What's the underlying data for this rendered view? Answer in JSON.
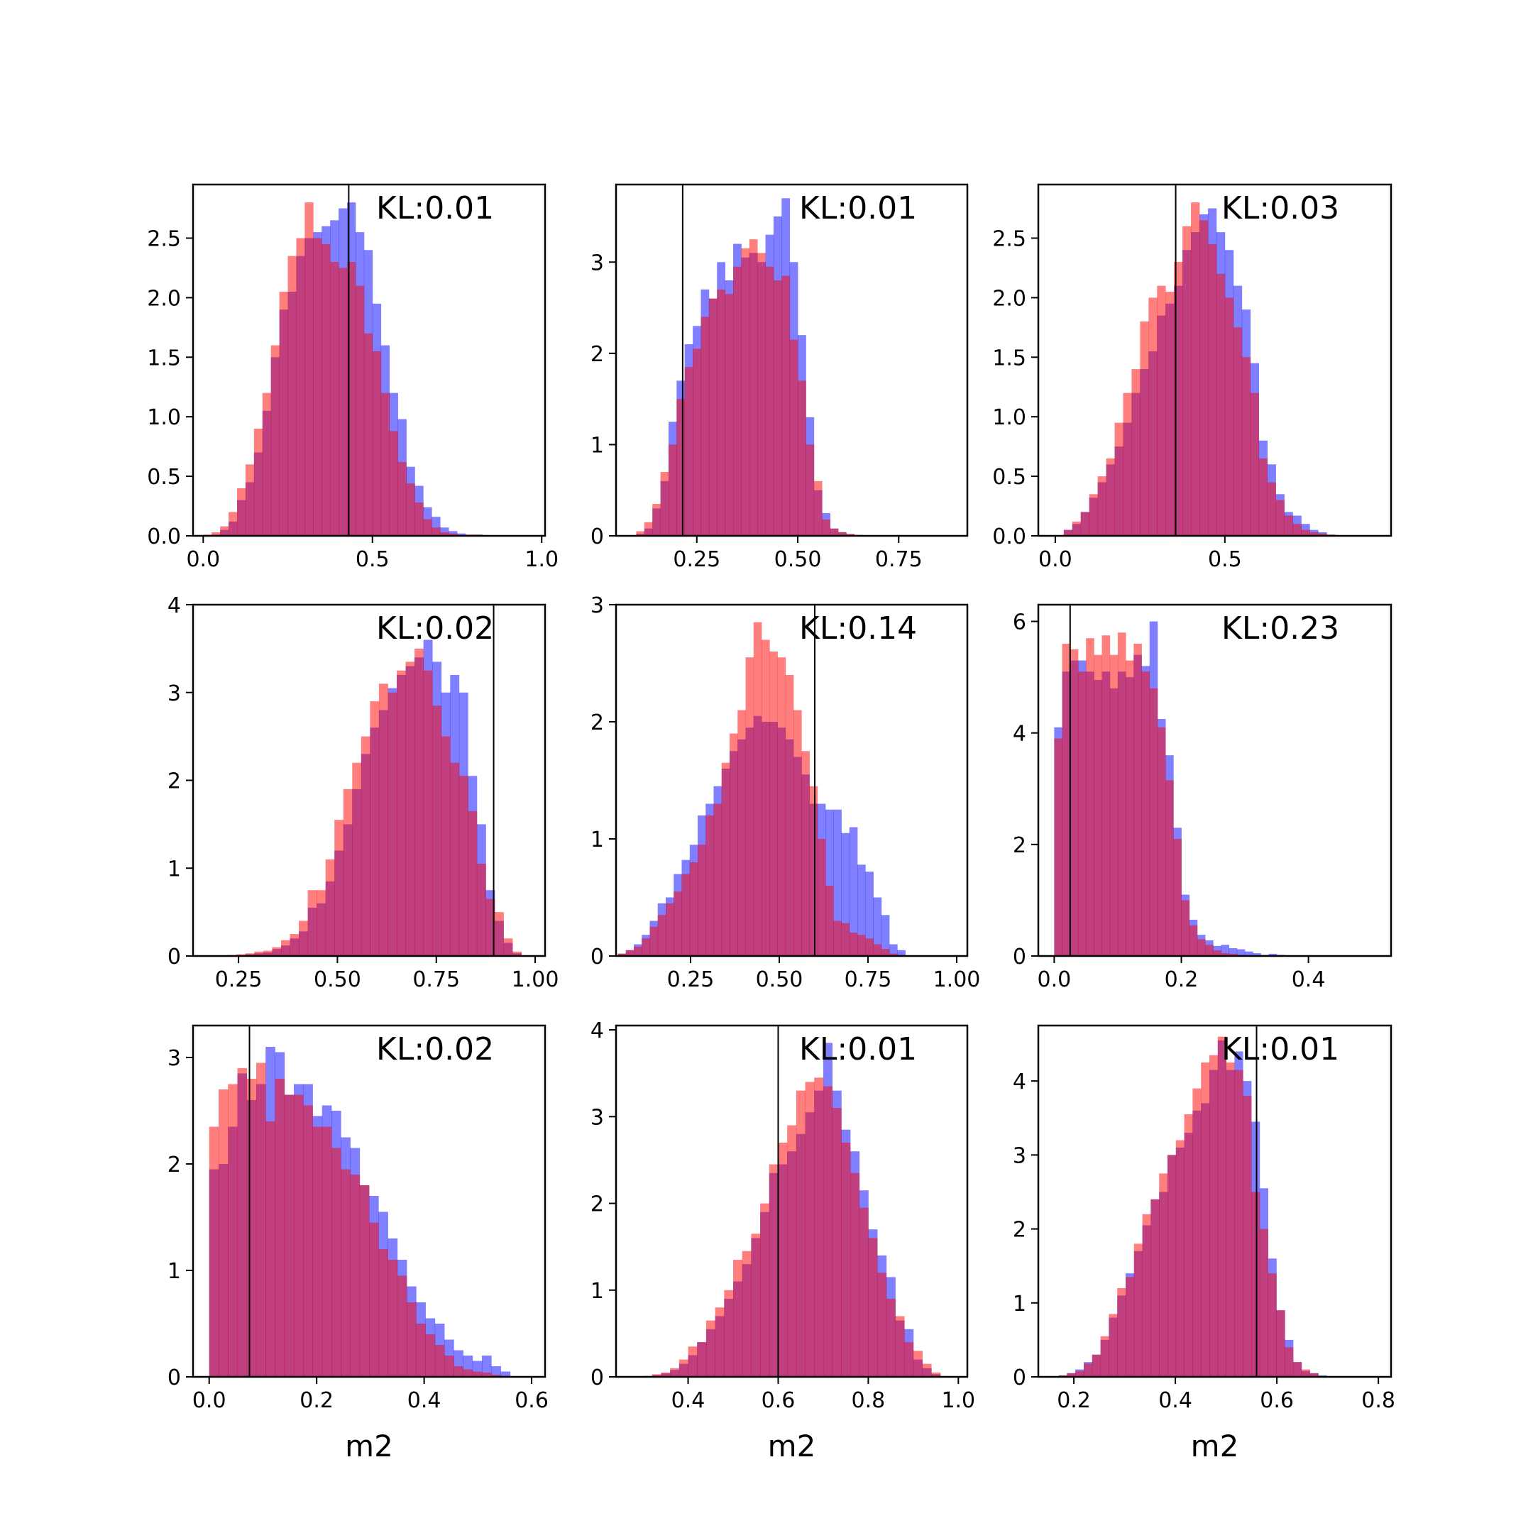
{
  "figure": {
    "colors": {
      "blue": "#0000ff",
      "red": "#ff0000",
      "vline": "#000000",
      "frame": "#000000"
    },
    "bar_opacity": 0.5
  },
  "chart_data": [
    {
      "type": "histogram",
      "annotation": "KL:0.01",
      "xlabel": "",
      "xlim": [
        -0.03,
        1.01
      ],
      "ylim": [
        0,
        2.95
      ],
      "vline": 0.43,
      "xticks": [
        0.0,
        0.5,
        1.0
      ],
      "xtick_labels": [
        "0.0",
        "0.5",
        "1.0"
      ],
      "yticks": [
        0,
        0.5,
        1.0,
        1.5,
        2.0,
        2.5
      ],
      "ytick_labels": [
        "0.0",
        "0.5",
        "1.0",
        "1.5",
        "2.0",
        "2.5"
      ],
      "bins": {
        "start": 0.0,
        "width": 0.025
      },
      "series": [
        {
          "color": "blue",
          "values": [
            0,
            0.01,
            0.05,
            0.12,
            0.3,
            0.45,
            0.7,
            1.05,
            1.5,
            1.9,
            2.05,
            2.35,
            2.5,
            2.55,
            2.6,
            2.65,
            2.75,
            2.8,
            2.55,
            2.4,
            1.95,
            1.6,
            1.2,
            0.98,
            0.58,
            0.42,
            0.24,
            0.16,
            0.07,
            0.04,
            0.02,
            0.01,
            0.01,
            0.0
          ]
        },
        {
          "color": "red",
          "values": [
            0.01,
            0.03,
            0.08,
            0.2,
            0.4,
            0.6,
            0.9,
            1.2,
            1.6,
            2.05,
            2.35,
            2.5,
            2.8,
            2.5,
            2.45,
            2.3,
            2.25,
            2.3,
            2.1,
            1.7,
            1.55,
            1.2,
            0.88,
            0.62,
            0.44,
            0.28,
            0.14,
            0.07,
            0.03,
            0.02,
            0.01,
            0.01,
            0.01,
            0.0
          ]
        }
      ]
    },
    {
      "type": "histogram",
      "annotation": "KL:0.01",
      "xlabel": "",
      "xlim": [
        0.05,
        0.92
      ],
      "ylim": [
        0,
        3.85
      ],
      "vline": 0.215,
      "xticks": [
        0.25,
        0.5,
        0.75
      ],
      "xtick_labels": [
        "0.25",
        "0.50",
        "0.75"
      ],
      "yticks": [
        0,
        1,
        2,
        3
      ],
      "ytick_labels": [
        "0",
        "1",
        "2",
        "3"
      ],
      "bins": {
        "start": 0.1,
        "width": 0.02
      },
      "series": [
        {
          "color": "blue",
          "values": [
            0.02,
            0.08,
            0.3,
            0.6,
            1.25,
            1.7,
            2.1,
            2.3,
            2.7,
            2.6,
            3.0,
            2.8,
            3.2,
            3.05,
            3.1,
            3.0,
            3.3,
            3.5,
            3.7,
            3.0,
            2.2,
            1.3,
            0.5,
            0.25,
            0.08,
            0.04,
            0.02,
            0.01
          ]
        },
        {
          "color": "red",
          "values": [
            0.05,
            0.15,
            0.35,
            0.7,
            1.0,
            1.5,
            1.85,
            2.05,
            2.4,
            2.6,
            2.7,
            2.65,
            2.95,
            3.15,
            3.25,
            3.1,
            2.95,
            2.8,
            2.85,
            2.15,
            1.7,
            1.0,
            0.6,
            0.18,
            0.08,
            0.04,
            0.02,
            0.01
          ]
        }
      ]
    },
    {
      "type": "histogram",
      "annotation": "KL:0.03",
      "xlabel": "",
      "xlim": [
        -0.05,
        0.99
      ],
      "ylim": [
        0,
        2.95
      ],
      "vline": 0.355,
      "xticks": [
        0.0,
        0.5
      ],
      "xtick_labels": [
        "0.0",
        "0.5"
      ],
      "yticks": [
        0,
        0.5,
        1.0,
        1.5,
        2.0,
        2.5
      ],
      "ytick_labels": [
        "0.0",
        "0.5",
        "1.0",
        "1.5",
        "2.0",
        "2.5"
      ],
      "bins": {
        "start": 0.025,
        "width": 0.025
      },
      "series": [
        {
          "color": "blue",
          "values": [
            0.05,
            0.1,
            0.2,
            0.32,
            0.45,
            0.6,
            0.75,
            0.95,
            1.2,
            1.4,
            1.55,
            1.85,
            1.95,
            2.1,
            2.4,
            2.55,
            2.7,
            2.75,
            2.55,
            2.4,
            2.1,
            1.9,
            1.45,
            0.8,
            0.6,
            0.35,
            0.2,
            0.17,
            0.1,
            0.05,
            0.03,
            0.01
          ]
        },
        {
          "color": "red",
          "values": [
            0.05,
            0.12,
            0.2,
            0.35,
            0.5,
            0.65,
            0.95,
            1.2,
            1.4,
            1.8,
            2.0,
            2.1,
            2.05,
            2.3,
            2.6,
            2.8,
            2.65,
            2.45,
            2.2,
            2.0,
            1.75,
            1.5,
            1.2,
            0.65,
            0.45,
            0.3,
            0.17,
            0.1,
            0.05,
            0.03,
            0.02,
            0.01
          ]
        }
      ]
    },
    {
      "type": "histogram",
      "annotation": "KL:0.02",
      "xlabel": "",
      "xlim": [
        0.135,
        1.025
      ],
      "ylim": [
        0,
        4.0
      ],
      "vline": 0.895,
      "xticks": [
        0.25,
        0.5,
        0.75,
        1.0
      ],
      "xtick_labels": [
        "0.25",
        "0.50",
        "0.75",
        "1.00"
      ],
      "yticks": [
        0,
        1,
        2,
        3,
        4
      ],
      "ytick_labels": [
        "0",
        "1",
        "2",
        "3",
        "4"
      ],
      "bins": {
        "start": 0.2,
        "width": 0.0225
      },
      "series": [
        {
          "color": "blue",
          "values": [
            0.0,
            0.01,
            0.01,
            0.02,
            0.03,
            0.04,
            0.08,
            0.12,
            0.2,
            0.28,
            0.55,
            0.6,
            0.85,
            1.2,
            1.5,
            1.9,
            2.3,
            2.6,
            2.8,
            3.05,
            3.2,
            3.3,
            3.4,
            3.6,
            3.35,
            3.0,
            3.2,
            3.0,
            2.05,
            1.5,
            0.75,
            0.4,
            0.15,
            0.03
          ]
        },
        {
          "color": "red",
          "values": [
            0.0,
            0.01,
            0.02,
            0.03,
            0.05,
            0.06,
            0.1,
            0.18,
            0.25,
            0.4,
            0.75,
            0.75,
            1.1,
            1.55,
            1.9,
            2.2,
            2.5,
            2.9,
            3.1,
            3.0,
            3.25,
            3.35,
            3.5,
            3.25,
            2.85,
            2.5,
            2.2,
            2.05,
            1.65,
            1.05,
            0.65,
            0.5,
            0.2,
            0.05
          ]
        }
      ]
    },
    {
      "type": "histogram",
      "annotation": "KL:0.14",
      "xlabel": "",
      "xlim": [
        0.04,
        1.03
      ],
      "ylim": [
        0,
        3.0
      ],
      "vline": 0.6,
      "xticks": [
        0.25,
        0.5,
        0.75,
        1.0
      ],
      "xtick_labels": [
        "0.25",
        "0.50",
        "0.75",
        "1.00"
      ],
      "yticks": [
        0,
        1,
        2,
        3
      ],
      "ytick_labels": [
        "0",
        "1",
        "2",
        "3"
      ],
      "bins": {
        "start": 0.045,
        "width": 0.0225
      },
      "series": [
        {
          "color": "blue",
          "values": [
            0.02,
            0.05,
            0.1,
            0.18,
            0.3,
            0.45,
            0.5,
            0.7,
            0.82,
            0.95,
            1.2,
            1.3,
            1.45,
            1.6,
            1.75,
            1.85,
            1.95,
            2.05,
            2.0,
            2.0,
            1.95,
            1.85,
            1.7,
            1.55,
            1.3,
            1.3,
            1.25,
            1.25,
            1.05,
            1.1,
            0.78,
            0.72,
            0.5,
            0.35,
            0.1,
            0.05
          ]
        },
        {
          "color": "red",
          "values": [
            0.02,
            0.05,
            0.08,
            0.15,
            0.25,
            0.35,
            0.45,
            0.55,
            0.7,
            0.8,
            0.95,
            1.2,
            1.3,
            1.65,
            1.9,
            2.1,
            2.55,
            2.85,
            2.7,
            2.6,
            2.55,
            2.4,
            2.1,
            1.75,
            1.45,
            1.0,
            0.6,
            0.3,
            0.28,
            0.2,
            0.18,
            0.15,
            0.1,
            0.06,
            0.02,
            0.01
          ]
        }
      ]
    },
    {
      "type": "histogram",
      "annotation": "KL:0.23",
      "xlabel": "",
      "xlim": [
        -0.025,
        0.53
      ],
      "ylim": [
        0,
        6.3
      ],
      "vline": 0.025,
      "xticks": [
        0.0,
        0.2,
        0.4
      ],
      "xtick_labels": [
        "0.0",
        "0.2",
        "0.4"
      ],
      "yticks": [
        0,
        2,
        4,
        6
      ],
      "ytick_labels": [
        "0",
        "2",
        "4",
        "6"
      ],
      "bins": {
        "start": 0.0,
        "width": 0.0125
      },
      "series": [
        {
          "color": "blue",
          "values": [
            4.1,
            5.1,
            5.3,
            5.3,
            5.1,
            4.95,
            5.1,
            4.8,
            5.1,
            5.0,
            5.4,
            5.2,
            6.0,
            4.25,
            3.6,
            2.3,
            1.1,
            0.65,
            0.38,
            0.28,
            0.18,
            0.2,
            0.14,
            0.12,
            0.08,
            0.05,
            0.02,
            0.04,
            0.02,
            0.01,
            0.01,
            0.0
          ]
        },
        {
          "color": "red",
          "values": [
            3.9,
            5.6,
            5.5,
            5.1,
            5.7,
            5.4,
            5.75,
            5.4,
            5.8,
            5.3,
            5.6,
            5.1,
            4.8,
            4.1,
            3.15,
            2.1,
            1.0,
            0.55,
            0.3,
            0.2,
            0.1,
            0.05,
            0.04,
            0.02,
            0.01,
            0.01,
            0.0,
            0.0,
            0.0,
            0.0,
            0.0,
            0.0
          ]
        }
      ]
    },
    {
      "type": "histogram",
      "annotation": "KL:0.02",
      "xlabel": "m2",
      "xlim": [
        -0.03,
        0.625
      ],
      "ylim": [
        0,
        3.3
      ],
      "vline": 0.075,
      "xticks": [
        0.0,
        0.2,
        0.4,
        0.6
      ],
      "xtick_labels": [
        "0.0",
        "0.2",
        "0.4",
        "0.6"
      ],
      "yticks": [
        0,
        1,
        2,
        3
      ],
      "ytick_labels": [
        "0",
        "1",
        "2",
        "3"
      ],
      "bins": {
        "start": 0.0,
        "width": 0.0175
      },
      "series": [
        {
          "color": "blue",
          "values": [
            1.95,
            2.0,
            2.35,
            2.85,
            2.6,
            2.75,
            3.1,
            3.05,
            2.65,
            2.75,
            2.75,
            2.45,
            2.55,
            2.5,
            2.25,
            2.15,
            1.8,
            1.7,
            1.55,
            1.3,
            1.1,
            0.85,
            0.7,
            0.55,
            0.5,
            0.35,
            0.25,
            0.2,
            0.15,
            0.2,
            0.1,
            0.05
          ]
        },
        {
          "color": "red",
          "values": [
            2.35,
            2.7,
            2.75,
            2.9,
            2.8,
            2.95,
            2.4,
            2.8,
            2.65,
            2.65,
            2.55,
            2.35,
            2.35,
            2.15,
            1.95,
            1.9,
            1.8,
            1.45,
            1.2,
            1.1,
            0.95,
            0.7,
            0.5,
            0.4,
            0.3,
            0.2,
            0.1,
            0.07,
            0.05,
            0.04,
            0.02,
            0.01
          ]
        }
      ]
    },
    {
      "type": "histogram",
      "annotation": "KL:0.01",
      "xlabel": "m2",
      "xlim": [
        0.24,
        1.02
      ],
      "ylim": [
        0,
        4.05
      ],
      "vline": 0.6,
      "xticks": [
        0.4,
        0.6,
        0.8,
        1.0
      ],
      "xtick_labels": [
        "0.4",
        "0.6",
        "0.8",
        "1.0"
      ],
      "yticks": [
        0,
        1,
        2,
        3,
        4
      ],
      "ytick_labels": [
        "0",
        "1",
        "2",
        "3",
        "4"
      ],
      "bins": {
        "start": 0.3,
        "width": 0.02
      },
      "series": [
        {
          "color": "blue",
          "values": [
            0.01,
            0.02,
            0.04,
            0.08,
            0.15,
            0.25,
            0.4,
            0.55,
            0.7,
            0.9,
            1.1,
            1.3,
            1.6,
            1.9,
            2.35,
            2.45,
            2.6,
            2.8,
            3.05,
            3.3,
            3.85,
            3.3,
            2.85,
            2.6,
            2.15,
            1.7,
            1.4,
            1.15,
            0.65,
            0.55,
            0.2,
            0.1,
            0.03,
            0.0
          ]
        },
        {
          "color": "red",
          "values": [
            0.01,
            0.03,
            0.05,
            0.1,
            0.2,
            0.35,
            0.4,
            0.65,
            0.8,
            1.0,
            1.35,
            1.45,
            1.65,
            2.0,
            2.45,
            2.7,
            2.9,
            3.3,
            3.4,
            3.45,
            3.35,
            3.1,
            2.7,
            2.35,
            1.95,
            1.6,
            1.2,
            0.9,
            0.7,
            0.4,
            0.3,
            0.15,
            0.05,
            0.01
          ]
        }
      ]
    },
    {
      "type": "histogram",
      "annotation": "KL:0.01",
      "xlabel": "m2",
      "xlim": [
        0.13,
        0.825
      ],
      "ylim": [
        0,
        4.75
      ],
      "vline": 0.56,
      "xticks": [
        0.2,
        0.4,
        0.6,
        0.8
      ],
      "xtick_labels": [
        "0.2",
        "0.4",
        "0.6",
        "0.8"
      ],
      "yticks": [
        0,
        1,
        2,
        3,
        4
      ],
      "ytick_labels": [
        "0",
        "1",
        "2",
        "3",
        "4"
      ],
      "bins": {
        "start": 0.17,
        "width": 0.0165
      },
      "series": [
        {
          "color": "blue",
          "values": [
            0.02,
            0.05,
            0.1,
            0.2,
            0.3,
            0.5,
            0.8,
            1.1,
            1.4,
            1.7,
            2.05,
            2.4,
            2.5,
            3.0,
            3.1,
            3.3,
            3.6,
            3.7,
            4.15,
            4.55,
            4.15,
            4.4,
            4.0,
            3.45,
            2.55,
            1.6,
            0.9,
            0.5,
            0.2,
            0.08,
            0.05,
            0.02
          ]
        },
        {
          "color": "red",
          "values": [
            0.02,
            0.05,
            0.08,
            0.18,
            0.3,
            0.55,
            0.85,
            1.2,
            1.35,
            1.8,
            2.2,
            2.4,
            2.75,
            3.0,
            3.2,
            3.55,
            3.9,
            4.25,
            4.35,
            4.6,
            4.25,
            4.15,
            3.8,
            2.5,
            2.0,
            1.4,
            0.9,
            0.4,
            0.2,
            0.1,
            0.05,
            0.01
          ]
        }
      ]
    }
  ]
}
